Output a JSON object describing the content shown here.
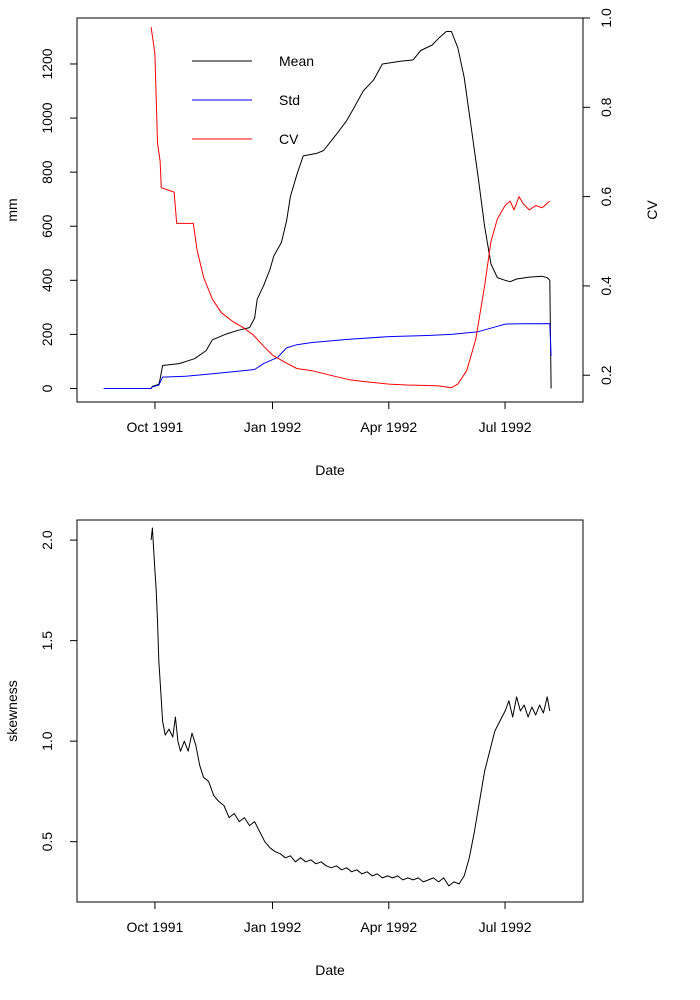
{
  "chart_data": [
    {
      "type": "line",
      "xlabel": "Date",
      "ylabel": "mm",
      "ylabel_right": "CV",
      "x_range": [
        "1991-08-01",
        "1992-08-31"
      ],
      "ylim": [
        -50,
        1370
      ],
      "ylim_right": [
        0.14,
        1.0
      ],
      "grid": false,
      "legend_position": "top-left",
      "x_ticks": [
        {
          "date": "1991-10-01",
          "label": "Oct 1991"
        },
        {
          "date": "1992-01-01",
          "label": "Jan 1992"
        },
        {
          "date": "1992-04-01",
          "label": "Apr 1992"
        },
        {
          "date": "1992-07-01",
          "label": "Jul 1992"
        }
      ],
      "y_ticks": [
        "0",
        "200",
        "400",
        "600",
        "800",
        "1000",
        "1200"
      ],
      "y_ticks_right": [
        "0.2",
        "0.4",
        "0.6",
        "0.8",
        "1.0"
      ],
      "series": [
        {
          "name": "Mean",
          "color": "#000000",
          "axis": "left",
          "points": [
            [
              "1991-08-22",
              0
            ],
            [
              "1991-09-28",
              0
            ],
            [
              "1991-09-29",
              8
            ],
            [
              "1991-10-04",
              15
            ],
            [
              "1991-10-05",
              35
            ],
            [
              "1991-10-07",
              85
            ],
            [
              "1991-10-20",
              92
            ],
            [
              "1991-11-01",
              110
            ],
            [
              "1991-11-10",
              140
            ],
            [
              "1991-11-15",
              180
            ],
            [
              "1991-11-25",
              200
            ],
            [
              "1991-12-05",
              215
            ],
            [
              "1991-12-14",
              225
            ],
            [
              "1991-12-18",
              260
            ],
            [
              "1991-12-20",
              330
            ],
            [
              "1991-12-25",
              380
            ],
            [
              "1991-12-30",
              440
            ],
            [
              "1992-01-02",
              490
            ],
            [
              "1992-01-08",
              540
            ],
            [
              "1992-01-12",
              620
            ],
            [
              "1992-01-15",
              710
            ],
            [
              "1992-01-20",
              790
            ],
            [
              "1992-01-25",
              860
            ],
            [
              "1992-02-05",
              870
            ],
            [
              "1992-02-10",
              880
            ],
            [
              "1992-02-20",
              940
            ],
            [
              "1992-02-28",
              990
            ],
            [
              "1992-03-05",
              1040
            ],
            [
              "1992-03-12",
              1100
            ],
            [
              "1992-03-20",
              1140
            ],
            [
              "1992-03-27",
              1200
            ],
            [
              "1992-04-10",
              1210
            ],
            [
              "1992-04-20",
              1215
            ],
            [
              "1992-04-26",
              1250
            ],
            [
              "1992-05-05",
              1270
            ],
            [
              "1992-05-10",
              1295
            ],
            [
              "1992-05-16",
              1320
            ],
            [
              "1992-05-20",
              1320
            ],
            [
              "1992-05-25",
              1260
            ],
            [
              "1992-05-30",
              1150
            ],
            [
              "1992-06-05",
              950
            ],
            [
              "1992-06-10",
              780
            ],
            [
              "1992-06-15",
              600
            ],
            [
              "1992-06-20",
              460
            ],
            [
              "1992-06-25",
              410
            ],
            [
              "1992-07-01",
              400
            ],
            [
              "1992-07-05",
              395
            ],
            [
              "1992-07-10",
              405
            ],
            [
              "1992-07-20",
              412
            ],
            [
              "1992-07-30",
              415
            ],
            [
              "1992-08-03",
              410
            ],
            [
              "1992-08-05",
              400
            ],
            [
              "1992-08-06",
              0
            ]
          ]
        },
        {
          "name": "Std",
          "color": "#0000ff",
          "axis": "left",
          "points": [
            [
              "1991-08-22",
              0
            ],
            [
              "1991-09-28",
              0
            ],
            [
              "1991-09-29",
              6
            ],
            [
              "1991-10-04",
              12
            ],
            [
              "1991-10-07",
              42
            ],
            [
              "1991-10-25",
              45
            ],
            [
              "1991-11-10",
              52
            ],
            [
              "1991-12-01",
              62
            ],
            [
              "1991-12-18",
              70
            ],
            [
              "1991-12-25",
              92
            ],
            [
              "1992-01-05",
              115
            ],
            [
              "1992-01-12",
              150
            ],
            [
              "1992-01-20",
              162
            ],
            [
              "1992-02-01",
              170
            ],
            [
              "1992-03-01",
              182
            ],
            [
              "1992-04-01",
              192
            ],
            [
              "1992-05-01",
              196
            ],
            [
              "1992-05-20",
              200
            ],
            [
              "1992-06-10",
              210
            ],
            [
              "1992-06-25",
              230
            ],
            [
              "1992-07-01",
              238
            ],
            [
              "1992-07-15",
              239
            ],
            [
              "1992-08-05",
              240
            ],
            [
              "1992-08-06",
              120
            ]
          ]
        },
        {
          "name": "CV",
          "color": "#ff0000",
          "axis": "right",
          "points": [
            [
              "1991-09-28",
              0.98
            ],
            [
              "1991-10-01",
              0.92
            ],
            [
              "1991-10-03",
              0.72
            ],
            [
              "1991-10-05",
              0.68
            ],
            [
              "1991-10-06",
              0.62
            ],
            [
              "1991-10-16",
              0.61
            ],
            [
              "1991-10-18",
              0.54
            ],
            [
              "1991-10-31",
              0.54
            ],
            [
              "1991-11-03",
              0.48
            ],
            [
              "1991-11-08",
              0.42
            ],
            [
              "1991-11-15",
              0.37
            ],
            [
              "1991-11-22",
              0.34
            ],
            [
              "1991-12-01",
              0.32
            ],
            [
              "1991-12-10",
              0.305
            ],
            [
              "1991-12-17",
              0.29
            ],
            [
              "1991-12-25",
              0.265
            ],
            [
              "1992-01-01",
              0.245
            ],
            [
              "1992-01-10",
              0.23
            ],
            [
              "1992-01-20",
              0.215
            ],
            [
              "1992-02-01",
              0.21
            ],
            [
              "1992-02-15",
              0.2
            ],
            [
              "1992-03-01",
              0.19
            ],
            [
              "1992-03-15",
              0.185
            ],
            [
              "1992-04-01",
              0.18
            ],
            [
              "1992-04-15",
              0.178
            ],
            [
              "1992-05-01",
              0.177
            ],
            [
              "1992-05-10",
              0.176
            ],
            [
              "1992-05-20",
              0.172
            ],
            [
              "1992-05-25",
              0.18
            ],
            [
              "1992-06-01",
              0.21
            ],
            [
              "1992-06-08",
              0.28
            ],
            [
              "1992-06-15",
              0.4
            ],
            [
              "1992-06-20",
              0.5
            ],
            [
              "1992-06-25",
              0.55
            ],
            [
              "1992-07-01",
              0.58
            ],
            [
              "1992-07-05",
              0.59
            ],
            [
              "1992-07-08",
              0.57
            ],
            [
              "1992-07-12",
              0.6
            ],
            [
              "1992-07-15",
              0.585
            ],
            [
              "1992-07-20",
              0.57
            ],
            [
              "1992-07-25",
              0.58
            ],
            [
              "1992-07-30",
              0.575
            ],
            [
              "1992-08-05",
              0.59
            ]
          ]
        }
      ]
    },
    {
      "type": "line",
      "xlabel": "Date",
      "ylabel": "skewness",
      "x_range": [
        "1991-08-01",
        "1992-08-31"
      ],
      "ylim": [
        0.2,
        2.1
      ],
      "grid": false,
      "x_ticks": [
        {
          "date": "1991-10-01",
          "label": "Oct 1991"
        },
        {
          "date": "1992-01-01",
          "label": "Jan 1992"
        },
        {
          "date": "1992-04-01",
          "label": "Apr 1992"
        },
        {
          "date": "1992-07-01",
          "label": "Jul 1992"
        }
      ],
      "y_ticks": [
        "0.5",
        "1.0",
        "1.5",
        "2.0"
      ],
      "series": [
        {
          "color": "#000000",
          "points": [
            [
              "1991-09-28",
              2.0
            ],
            [
              "1991-09-29",
              2.06
            ],
            [
              "1991-09-30",
              1.95
            ],
            [
              "1991-10-01",
              1.85
            ],
            [
              "1991-10-02",
              1.75
            ],
            [
              "1991-10-03",
              1.6
            ],
            [
              "1991-10-04",
              1.4
            ],
            [
              "1991-10-05",
              1.3
            ],
            [
              "1991-10-07",
              1.1
            ],
            [
              "1991-10-09",
              1.03
            ],
            [
              "1991-10-12",
              1.06
            ],
            [
              "1991-10-15",
              1.02
            ],
            [
              "1991-10-17",
              1.12
            ],
            [
              "1991-10-19",
              1.0
            ],
            [
              "1991-10-21",
              0.95
            ],
            [
              "1991-10-24",
              1.0
            ],
            [
              "1991-10-27",
              0.95
            ],
            [
              "1991-10-30",
              1.04
            ],
            [
              "1991-11-02",
              0.98
            ],
            [
              "1991-11-05",
              0.88
            ],
            [
              "1991-11-08",
              0.82
            ],
            [
              "1991-11-12",
              0.8
            ],
            [
              "1991-11-16",
              0.73
            ],
            [
              "1991-11-20",
              0.7
            ],
            [
              "1991-11-24",
              0.68
            ],
            [
              "1991-11-28",
              0.62
            ],
            [
              "1991-12-02",
              0.64
            ],
            [
              "1991-12-06",
              0.6
            ],
            [
              "1991-12-10",
              0.62
            ],
            [
              "1991-12-14",
              0.58
            ],
            [
              "1991-12-18",
              0.6
            ],
            [
              "1991-12-22",
              0.55
            ],
            [
              "1991-12-26",
              0.5
            ],
            [
              "1991-12-30",
              0.47
            ],
            [
              "1992-01-03",
              0.45
            ],
            [
              "1992-01-07",
              0.44
            ],
            [
              "1992-01-11",
              0.42
            ],
            [
              "1992-01-15",
              0.43
            ],
            [
              "1992-01-19",
              0.4
            ],
            [
              "1992-01-23",
              0.42
            ],
            [
              "1992-01-27",
              0.4
            ],
            [
              "1992-01-31",
              0.41
            ],
            [
              "1992-02-04",
              0.39
            ],
            [
              "1992-02-08",
              0.4
            ],
            [
              "1992-02-12",
              0.38
            ],
            [
              "1992-02-16",
              0.37
            ],
            [
              "1992-02-20",
              0.38
            ],
            [
              "1992-02-24",
              0.36
            ],
            [
              "1992-02-28",
              0.37
            ],
            [
              "1992-03-03",
              0.35
            ],
            [
              "1992-03-07",
              0.36
            ],
            [
              "1992-03-11",
              0.34
            ],
            [
              "1992-03-15",
              0.35
            ],
            [
              "1992-03-19",
              0.33
            ],
            [
              "1992-03-23",
              0.34
            ],
            [
              "1992-03-27",
              0.32
            ],
            [
              "1992-03-31",
              0.33
            ],
            [
              "1992-04-04",
              0.32
            ],
            [
              "1992-04-08",
              0.33
            ],
            [
              "1992-04-12",
              0.31
            ],
            [
              "1992-04-16",
              0.32
            ],
            [
              "1992-04-20",
              0.31
            ],
            [
              "1992-04-24",
              0.32
            ],
            [
              "1992-04-28",
              0.3
            ],
            [
              "1992-05-02",
              0.31
            ],
            [
              "1992-05-06",
              0.32
            ],
            [
              "1992-05-10",
              0.3
            ],
            [
              "1992-05-14",
              0.32
            ],
            [
              "1992-05-18",
              0.28
            ],
            [
              "1992-05-22",
              0.3
            ],
            [
              "1992-05-26",
              0.29
            ],
            [
              "1992-05-30",
              0.33
            ],
            [
              "1992-06-03",
              0.42
            ],
            [
              "1992-06-07",
              0.55
            ],
            [
              "1992-06-11",
              0.7
            ],
            [
              "1992-06-15",
              0.85
            ],
            [
              "1992-06-19",
              0.95
            ],
            [
              "1992-06-23",
              1.05
            ],
            [
              "1992-06-27",
              1.1
            ],
            [
              "1992-07-01",
              1.15
            ],
            [
              "1992-07-04",
              1.2
            ],
            [
              "1992-07-07",
              1.12
            ],
            [
              "1992-07-10",
              1.22
            ],
            [
              "1992-07-13",
              1.15
            ],
            [
              "1992-07-16",
              1.18
            ],
            [
              "1992-07-19",
              1.12
            ],
            [
              "1992-07-22",
              1.17
            ],
            [
              "1992-07-25",
              1.13
            ],
            [
              "1992-07-28",
              1.18
            ],
            [
              "1992-07-31",
              1.14
            ],
            [
              "1992-08-03",
              1.22
            ],
            [
              "1992-08-05",
              1.15
            ]
          ]
        }
      ]
    }
  ]
}
